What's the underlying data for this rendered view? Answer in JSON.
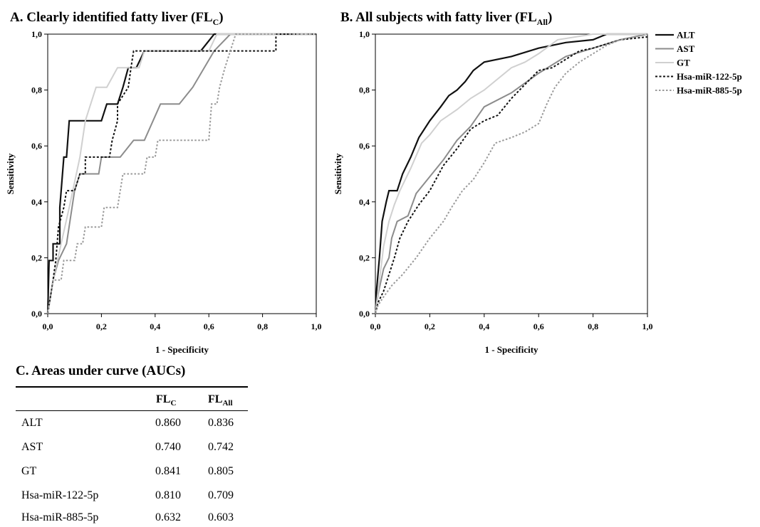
{
  "panels": {
    "a": {
      "title": "A. Clearly identified  fatty liver (FL",
      "title_sub": "C",
      "title_end": ")"
    },
    "b": {
      "title": "B. All subjects with fatty liver (FL",
      "title_sub": "All",
      "title_end": ")"
    }
  },
  "chart_data": [
    {
      "type": "line",
      "title": "A. Clearly identified fatty liver (FLC)",
      "xlabel": "1 - Specificity",
      "ylabel": "Sensitivity",
      "xlim": [
        0,
        1
      ],
      "ylim": [
        0,
        1
      ],
      "xticks": [
        "0,0",
        "0,2",
        "0,4",
        "0,6",
        "0,8",
        "1,0"
      ],
      "yticks": [
        "0,0",
        "0,2",
        "0,4",
        "0,6",
        "0,8",
        "1,0"
      ],
      "legend": "none",
      "series": [
        {
          "name": "ALT",
          "color": "#111111",
          "dash": "",
          "width": 2.2,
          "points": [
            [
              0,
              0
            ],
            [
              0.005,
              0.19
            ],
            [
              0.02,
              0.19
            ],
            [
              0.02,
              0.25
            ],
            [
              0.045,
              0.25
            ],
            [
              0.045,
              0.38
            ],
            [
              0.06,
              0.56
            ],
            [
              0.07,
              0.56
            ],
            [
              0.08,
              0.69
            ],
            [
              0.2,
              0.69
            ],
            [
              0.22,
              0.75
            ],
            [
              0.26,
              0.75
            ],
            [
              0.28,
              0.81
            ],
            [
              0.3,
              0.88
            ],
            [
              0.33,
              0.88
            ],
            [
              0.36,
              0.94
            ],
            [
              0.57,
              0.94
            ],
            [
              0.62,
              1.0
            ],
            [
              1,
              1
            ]
          ]
        },
        {
          "name": "AST",
          "color": "#8c8c8c",
          "dash": "",
          "width": 2,
          "points": [
            [
              0,
              0
            ],
            [
              0.02,
              0.12
            ],
            [
              0.04,
              0.19
            ],
            [
              0.07,
              0.25
            ],
            [
              0.1,
              0.44
            ],
            [
              0.12,
              0.5
            ],
            [
              0.19,
              0.5
            ],
            [
              0.2,
              0.56
            ],
            [
              0.27,
              0.56
            ],
            [
              0.32,
              0.62
            ],
            [
              0.36,
              0.62
            ],
            [
              0.42,
              0.75
            ],
            [
              0.49,
              0.75
            ],
            [
              0.54,
              0.81
            ],
            [
              0.62,
              0.94
            ],
            [
              0.68,
              1.0
            ],
            [
              1,
              1
            ]
          ]
        },
        {
          "name": "GT",
          "color": "#d0d0d0",
          "dash": "",
          "width": 2,
          "points": [
            [
              0,
              0
            ],
            [
              0.02,
              0.12
            ],
            [
              0.05,
              0.25
            ],
            [
              0.08,
              0.38
            ],
            [
              0.12,
              0.56
            ],
            [
              0.14,
              0.69
            ],
            [
              0.16,
              0.75
            ],
            [
              0.18,
              0.81
            ],
            [
              0.22,
              0.81
            ],
            [
              0.26,
              0.88
            ],
            [
              0.34,
              0.88
            ],
            [
              0.36,
              0.94
            ],
            [
              0.6,
              0.94
            ],
            [
              0.63,
              1.0
            ],
            [
              1,
              1
            ]
          ]
        },
        {
          "name": "Hsa-miR-122-5p",
          "color": "#111111",
          "dash": "3,2.5",
          "width": 2,
          "points": [
            [
              0,
              0
            ],
            [
              0.01,
              0.06
            ],
            [
              0.02,
              0.12
            ],
            [
              0.03,
              0.19
            ],
            [
              0.04,
              0.31
            ],
            [
              0.06,
              0.38
            ],
            [
              0.07,
              0.44
            ],
            [
              0.1,
              0.44
            ],
            [
              0.12,
              0.5
            ],
            [
              0.14,
              0.5
            ],
            [
              0.14,
              0.56
            ],
            [
              0.23,
              0.56
            ],
            [
              0.24,
              0.62
            ],
            [
              0.26,
              0.69
            ],
            [
              0.26,
              0.75
            ],
            [
              0.3,
              0.81
            ],
            [
              0.31,
              0.88
            ],
            [
              0.32,
              0.94
            ],
            [
              0.85,
              0.94
            ],
            [
              0.85,
              1.0
            ],
            [
              1,
              1
            ]
          ]
        },
        {
          "name": "Hsa-miR-885-5p",
          "color": "#9a9a9a",
          "dash": "2.5,2.5",
          "width": 2,
          "points": [
            [
              0,
              0
            ],
            [
              0.01,
              0.06
            ],
            [
              0.02,
              0.12
            ],
            [
              0.05,
              0.12
            ],
            [
              0.06,
              0.19
            ],
            [
              0.1,
              0.19
            ],
            [
              0.11,
              0.25
            ],
            [
              0.13,
              0.25
            ],
            [
              0.14,
              0.31
            ],
            [
              0.2,
              0.31
            ],
            [
              0.21,
              0.38
            ],
            [
              0.26,
              0.38
            ],
            [
              0.27,
              0.44
            ],
            [
              0.28,
              0.5
            ],
            [
              0.36,
              0.5
            ],
            [
              0.37,
              0.56
            ],
            [
              0.4,
              0.56
            ],
            [
              0.41,
              0.62
            ],
            [
              0.6,
              0.62
            ],
            [
              0.61,
              0.75
            ],
            [
              0.63,
              0.75
            ],
            [
              0.64,
              0.81
            ],
            [
              0.66,
              0.88
            ],
            [
              0.68,
              0.94
            ],
            [
              0.7,
              1.0
            ],
            [
              1,
              1
            ]
          ]
        }
      ]
    },
    {
      "type": "line",
      "title": "B. All subjects with fatty liver (FLAll)",
      "xlabel": "1 - Specificity",
      "ylabel": "Sensitivity",
      "xlim": [
        0,
        1
      ],
      "ylim": [
        0,
        1
      ],
      "xticks": [
        "0,0",
        "0,2",
        "0,4",
        "0,6",
        "0,8",
        "1,0"
      ],
      "yticks": [
        "0,0",
        "0,2",
        "0,4",
        "0,6",
        "0,8",
        "1,0"
      ],
      "legend": "right",
      "series": [
        {
          "name": "ALT",
          "color": "#111111",
          "dash": "",
          "width": 2.2,
          "points": [
            [
              0,
              0
            ],
            [
              0.005,
              0.09
            ],
            [
              0.015,
              0.2
            ],
            [
              0.025,
              0.33
            ],
            [
              0.04,
              0.4
            ],
            [
              0.05,
              0.44
            ],
            [
              0.08,
              0.44
            ],
            [
              0.09,
              0.47
            ],
            [
              0.1,
              0.5
            ],
            [
              0.13,
              0.56
            ],
            [
              0.16,
              0.63
            ],
            [
              0.2,
              0.69
            ],
            [
              0.24,
              0.74
            ],
            [
              0.27,
              0.78
            ],
            [
              0.3,
              0.8
            ],
            [
              0.33,
              0.83
            ],
            [
              0.36,
              0.87
            ],
            [
              0.4,
              0.9
            ],
            [
              0.5,
              0.92
            ],
            [
              0.6,
              0.95
            ],
            [
              0.7,
              0.97
            ],
            [
              0.8,
              0.98
            ],
            [
              0.85,
              1.0
            ],
            [
              1,
              1
            ]
          ]
        },
        {
          "name": "AST",
          "color": "#8c8c8c",
          "dash": "",
          "width": 2,
          "points": [
            [
              0,
              0
            ],
            [
              0.01,
              0.07
            ],
            [
              0.03,
              0.16
            ],
            [
              0.05,
              0.2
            ],
            [
              0.06,
              0.27
            ],
            [
              0.08,
              0.33
            ],
            [
              0.12,
              0.35
            ],
            [
              0.15,
              0.43
            ],
            [
              0.2,
              0.49
            ],
            [
              0.25,
              0.55
            ],
            [
              0.3,
              0.62
            ],
            [
              0.35,
              0.67
            ],
            [
              0.4,
              0.74
            ],
            [
              0.5,
              0.79
            ],
            [
              0.6,
              0.86
            ],
            [
              0.7,
              0.92
            ],
            [
              0.8,
              0.95
            ],
            [
              0.9,
              0.98
            ],
            [
              1,
              1
            ]
          ]
        },
        {
          "name": "GT",
          "color": "#d0d0d0",
          "dash": "",
          "width": 2,
          "points": [
            [
              0,
              0
            ],
            [
              0.01,
              0.08
            ],
            [
              0.03,
              0.24
            ],
            [
              0.05,
              0.33
            ],
            [
              0.07,
              0.39
            ],
            [
              0.09,
              0.44
            ],
            [
              0.13,
              0.52
            ],
            [
              0.17,
              0.61
            ],
            [
              0.2,
              0.64
            ],
            [
              0.24,
              0.69
            ],
            [
              0.3,
              0.73
            ],
            [
              0.35,
              0.77
            ],
            [
              0.4,
              0.8
            ],
            [
              0.45,
              0.84
            ],
            [
              0.5,
              0.88
            ],
            [
              0.55,
              0.9
            ],
            [
              0.6,
              0.93
            ],
            [
              0.67,
              0.98
            ],
            [
              0.8,
              1.0
            ],
            [
              1,
              1
            ]
          ]
        },
        {
          "name": "Hsa-miR-122-5p",
          "color": "#111111",
          "dash": "3,2.5",
          "width": 2,
          "points": [
            [
              0,
              0
            ],
            [
              0.01,
              0.04
            ],
            [
              0.03,
              0.08
            ],
            [
              0.05,
              0.14
            ],
            [
              0.07,
              0.2
            ],
            [
              0.09,
              0.27
            ],
            [
              0.12,
              0.33
            ],
            [
              0.16,
              0.39
            ],
            [
              0.2,
              0.44
            ],
            [
              0.25,
              0.53
            ],
            [
              0.3,
              0.59
            ],
            [
              0.35,
              0.66
            ],
            [
              0.4,
              0.69
            ],
            [
              0.45,
              0.71
            ],
            [
              0.5,
              0.77
            ],
            [
              0.55,
              0.82
            ],
            [
              0.6,
              0.87
            ],
            [
              0.65,
              0.88
            ],
            [
              0.7,
              0.91
            ],
            [
              0.75,
              0.94
            ],
            [
              0.8,
              0.95
            ],
            [
              0.9,
              0.98
            ],
            [
              1,
              0.99
            ]
          ]
        },
        {
          "name": "Hsa-miR-885-5p",
          "color": "#9a9a9a",
          "dash": "2.5,2.5",
          "width": 2,
          "points": [
            [
              0,
              0
            ],
            [
              0.01,
              0.03
            ],
            [
              0.03,
              0.06
            ],
            [
              0.06,
              0.1
            ],
            [
              0.1,
              0.14
            ],
            [
              0.15,
              0.2
            ],
            [
              0.2,
              0.27
            ],
            [
              0.25,
              0.33
            ],
            [
              0.28,
              0.38
            ],
            [
              0.32,
              0.44
            ],
            [
              0.36,
              0.48
            ],
            [
              0.4,
              0.54
            ],
            [
              0.44,
              0.61
            ],
            [
              0.5,
              0.63
            ],
            [
              0.55,
              0.65
            ],
            [
              0.6,
              0.68
            ],
            [
              0.63,
              0.75
            ],
            [
              0.66,
              0.81
            ],
            [
              0.7,
              0.86
            ],
            [
              0.75,
              0.9
            ],
            [
              0.8,
              0.93
            ],
            [
              0.85,
              0.96
            ],
            [
              0.9,
              0.98
            ],
            [
              1,
              1
            ]
          ]
        }
      ]
    }
  ],
  "table": {
    "title": "C. Areas under curve (AUCs)",
    "headers": [
      {
        "main": "FL",
        "sub": "C"
      },
      {
        "main": "FL",
        "sub": "All"
      }
    ],
    "rows": [
      {
        "label": "ALT",
        "flc": "0.860",
        "flall": "0.836"
      },
      {
        "label": "AST",
        "flc": "0.740",
        "flall": "0.742"
      },
      {
        "label": "GT",
        "flc": "0.841",
        "flall": "0.805"
      },
      {
        "label": "Hsa-miR-122-5p",
        "flc": "0.810",
        "flall": "0.709"
      },
      {
        "label": "Hsa-miR-885-5p",
        "flc": "0.632",
        "flall": "0.603"
      }
    ]
  }
}
